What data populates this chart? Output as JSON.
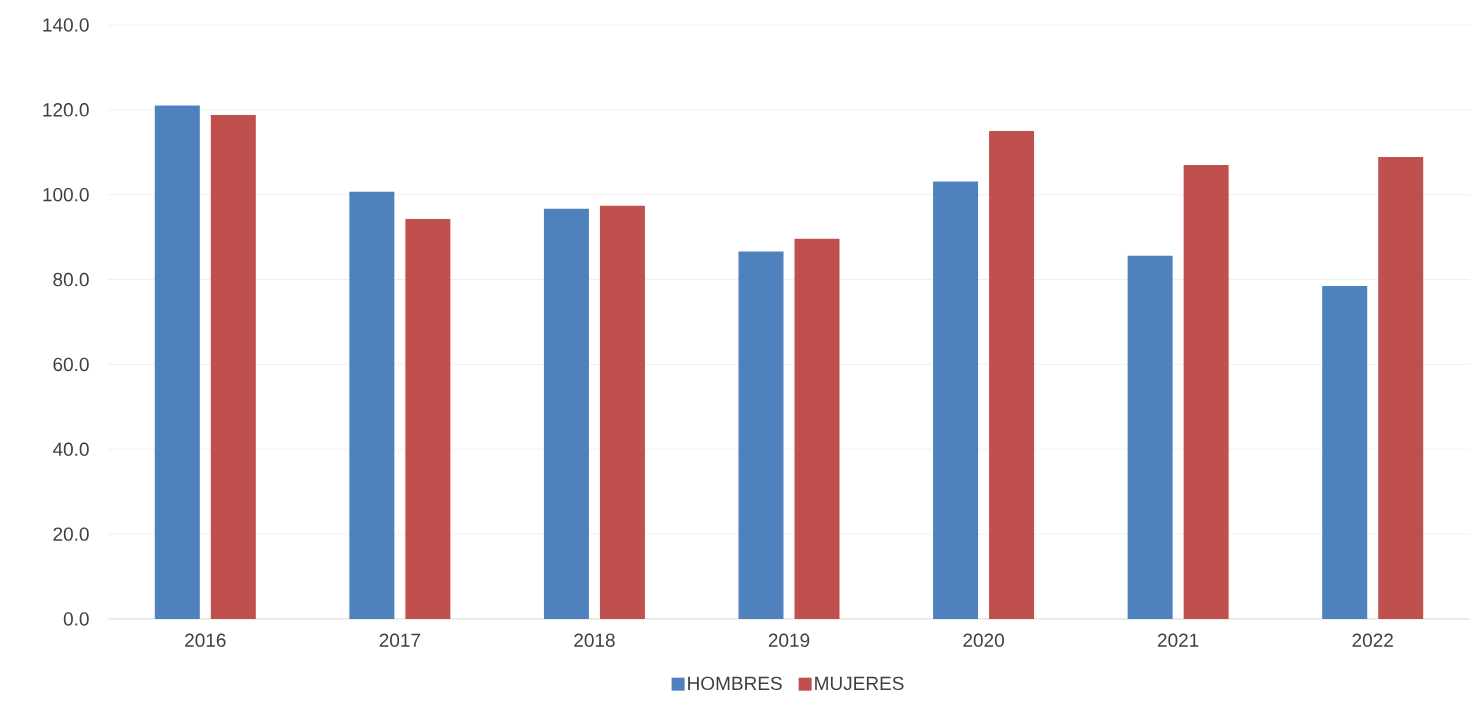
{
  "chart_data": {
    "type": "bar",
    "categories": [
      "2016",
      "2017",
      "2018",
      "2019",
      "2020",
      "2021",
      "2022"
    ],
    "series": [
      {
        "name": "HOMBRES",
        "color": "#4f81bd",
        "values": [
          121.0,
          100.7,
          96.7,
          86.6,
          103.1,
          85.6,
          78.5
        ]
      },
      {
        "name": "MUJERES",
        "color": "#c0504d",
        "values": [
          118.8,
          94.3,
          97.4,
          89.6,
          115.0,
          107.0,
          108.9
        ]
      }
    ],
    "ylim": [
      0,
      140
    ],
    "yticks": [
      {
        "value": 0,
        "label": "0.0"
      },
      {
        "value": 20,
        "label": "20.0"
      },
      {
        "value": 40,
        "label": "40.0"
      },
      {
        "value": 60,
        "label": "60.0"
      },
      {
        "value": 80,
        "label": "80.0"
      },
      {
        "value": 100,
        "label": "100.0"
      },
      {
        "value": 120,
        "label": "120.0"
      },
      {
        "value": 140,
        "label": "140.0"
      }
    ],
    "grid": "y",
    "legend": "bottom"
  }
}
